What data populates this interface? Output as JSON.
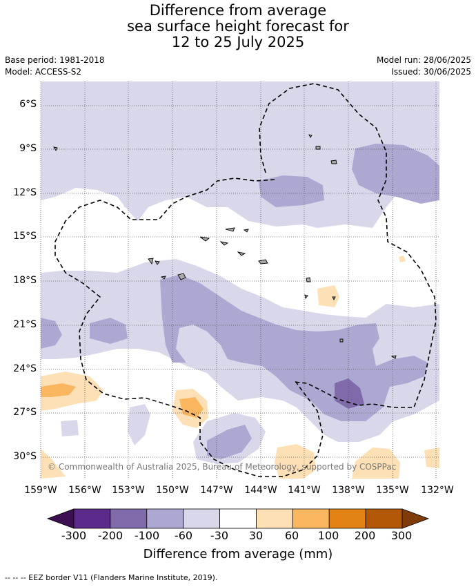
{
  "title": {
    "line1": "Difference from average",
    "line2": "sea surface height forecast for",
    "line3": "12 to 25 July 2025"
  },
  "meta": {
    "base_period": "Base period: 1981-2018",
    "model": "Model: ACCESS-S2",
    "model_run": "Model run: 28/06/2025",
    "issued": "Issued: 30/06/2025"
  },
  "map": {
    "lat_labels": [
      "6°S",
      "9°S",
      "12°S",
      "15°S",
      "18°S",
      "21°S",
      "24°S",
      "27°S",
      "30°S"
    ],
    "lon_labels": [
      "159°W",
      "156°W",
      "153°W",
      "150°W",
      "147°W",
      "144°W",
      "141°W",
      "138°W",
      "135°W",
      "132°W"
    ],
    "credit": "© Commonwealth of Australia 2025, Bureau of Meteorology, supported by COSPPac",
    "colors": {
      "land": "#aaaaaa",
      "eez": "#000000",
      "grid": "#555555"
    }
  },
  "colorbar": {
    "title": "Difference from average (mm)",
    "labels": [
      "-300",
      "-200",
      "-100",
      "-60",
      "-30",
      "30",
      "60",
      "100",
      "200",
      "300"
    ],
    "colors": [
      "#3b0f52",
      "#5b2a8a",
      "#7f6aaa",
      "#ada8d2",
      "#d8d8ea",
      "#ffffff",
      "#fde0b5",
      "#fbb760",
      "#e38316",
      "#b25807",
      "#7f3b08"
    ]
  },
  "footer": "--  --  -- EEZ border V11 (Flanders Marine Institute, 2019)."
}
